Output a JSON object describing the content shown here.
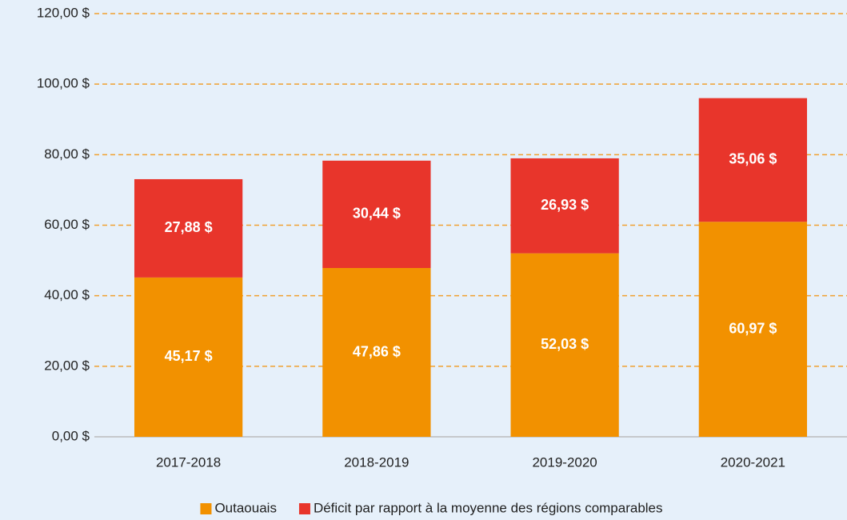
{
  "chart_data": {
    "type": "stacked_bar",
    "categories": [
      "2017-2018",
      "2018-2019",
      "2019-2020",
      "2020-2021"
    ],
    "series": [
      {
        "name": "Outaouais",
        "color": "#f29100",
        "values": [
          45.17,
          47.86,
          52.03,
          60.97
        ],
        "value_labels": [
          "45,17 $",
          "47,86 $",
          "52,03 $",
          "60,97 $"
        ]
      },
      {
        "name": "Déficit par rapport à la moyenne des régions comparables",
        "color": "#e8352b",
        "values": [
          27.88,
          30.44,
          26.93,
          35.06
        ],
        "value_labels": [
          "27,88 $",
          "30,44 $",
          "26,93 $",
          "35,06 $"
        ]
      }
    ],
    "ylim": [
      0,
      120
    ],
    "yticks": [
      {
        "value": 0,
        "label": "0,00 $"
      },
      {
        "value": 20,
        "label": "20,00 $"
      },
      {
        "value": 40,
        "label": "40,00 $"
      },
      {
        "value": 60,
        "label": "60,00 $"
      },
      {
        "value": 80,
        "label": "80,00 $"
      },
      {
        "value": 100,
        "label": "100,00 $"
      },
      {
        "value": 120,
        "label": "120,00 $"
      }
    ],
    "grid": true,
    "legend": "bottom"
  }
}
